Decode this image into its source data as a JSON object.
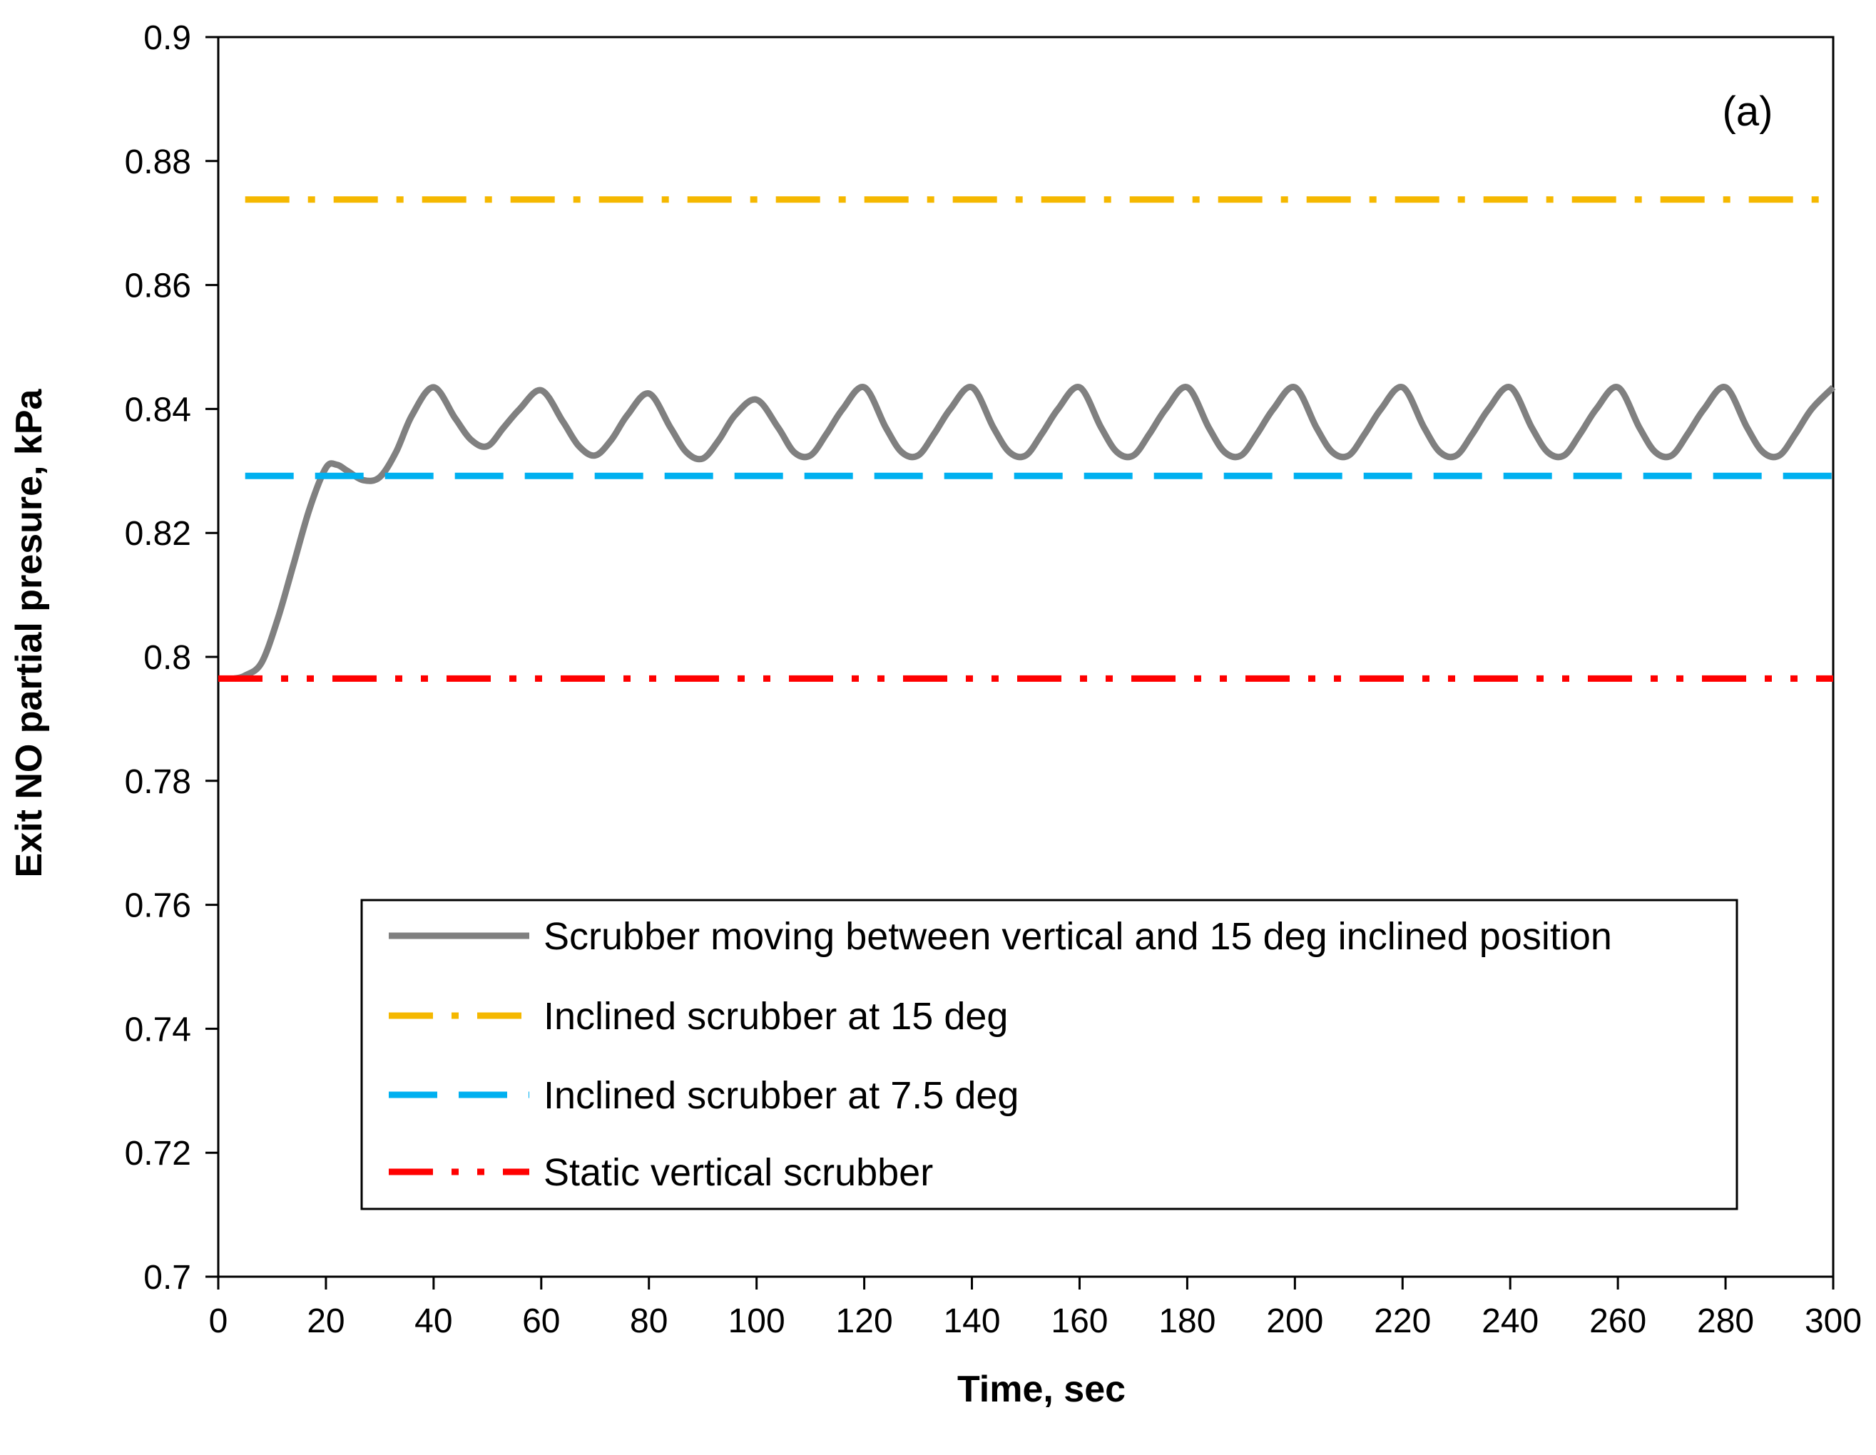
{
  "chart_data": {
    "type": "line",
    "title": "",
    "annotation": "(a)",
    "xlabel": "Time, sec",
    "ylabel": "Exit NO partial presure, kPa",
    "xlim": [
      0,
      300
    ],
    "ylim": [
      0.7,
      0.9
    ],
    "x_ticks": [
      "0",
      "20",
      "40",
      "60",
      "80",
      "100",
      "120",
      "140",
      "160",
      "180",
      "200",
      "220",
      "240",
      "260",
      "280",
      "300"
    ],
    "y_ticks": [
      "0.7",
      "0.72",
      "0.74",
      "0.76",
      "0.78",
      "0.8",
      "0.82",
      "0.84",
      "0.86",
      "0.88",
      "0.9"
    ],
    "grid": false,
    "legend_position": "bottom-center",
    "colors": {
      "moving": "#808080",
      "inclined15": "#F5B800",
      "inclined75": "#00B0F0",
      "static": "#FF0000"
    },
    "series": [
      {
        "name": "Scrubber moving between vertical and 15 deg inclined position",
        "style": "solid",
        "color": "#808080",
        "x": [
          3,
          5,
          8,
          11,
          14,
          17,
          20,
          22,
          24,
          27,
          30,
          33,
          36,
          40,
          44,
          47,
          50,
          53,
          56,
          60,
          64,
          67,
          70,
          73,
          76,
          80,
          84,
          87,
          90,
          93,
          96,
          100,
          104,
          107,
          110,
          113,
          116,
          120,
          124,
          127,
          130,
          133,
          136,
          140,
          144,
          147,
          150,
          153,
          156,
          160,
          164,
          167,
          170,
          173,
          176,
          180,
          184,
          187,
          190,
          193,
          196,
          200,
          204,
          207,
          210,
          213,
          216,
          220,
          224,
          227,
          230,
          233,
          236,
          240,
          244,
          247,
          250,
          253,
          256,
          260,
          264,
          267,
          270,
          273,
          276,
          280,
          284,
          287,
          290,
          293,
          296,
          300
        ],
        "y": [
          0.7965,
          0.797,
          0.799,
          0.806,
          0.815,
          0.824,
          0.8305,
          0.831,
          0.83,
          0.8285,
          0.829,
          0.833,
          0.839,
          0.8435,
          0.8385,
          0.835,
          0.834,
          0.837,
          0.84,
          0.843,
          0.838,
          0.834,
          0.8325,
          0.835,
          0.839,
          0.8425,
          0.837,
          0.833,
          0.832,
          0.835,
          0.839,
          0.8415,
          0.837,
          0.833,
          0.8325,
          0.836,
          0.84,
          0.8435,
          0.837,
          0.833,
          0.8325,
          0.836,
          0.84,
          0.8435,
          0.837,
          0.833,
          0.8325,
          0.836,
          0.84,
          0.8435,
          0.837,
          0.833,
          0.8325,
          0.836,
          0.84,
          0.8435,
          0.837,
          0.833,
          0.8325,
          0.836,
          0.84,
          0.8435,
          0.837,
          0.833,
          0.8325,
          0.836,
          0.84,
          0.8435,
          0.837,
          0.833,
          0.8325,
          0.836,
          0.84,
          0.8435,
          0.837,
          0.833,
          0.8325,
          0.836,
          0.84,
          0.8435,
          0.837,
          0.833,
          0.8325,
          0.836,
          0.84,
          0.8435,
          0.837,
          0.833,
          0.8325,
          0.836,
          0.84,
          0.8435
        ]
      },
      {
        "name": "Inclined scrubber at 15 deg",
        "style": "dash-dot",
        "color": "#F5B800",
        "x": [
          5,
          300
        ],
        "y": [
          0.8738,
          0.8738
        ]
      },
      {
        "name": "Inclined scrubber at 7.5 deg",
        "style": "dash",
        "color": "#00B0F0",
        "x": [
          5,
          300
        ],
        "y": [
          0.8292,
          0.8292
        ]
      },
      {
        "name": "Static vertical scrubber",
        "style": "dash-dot-dot",
        "color": "#FF0000",
        "x": [
          0,
          300
        ],
        "y": [
          0.7965,
          0.7965
        ]
      }
    ]
  }
}
